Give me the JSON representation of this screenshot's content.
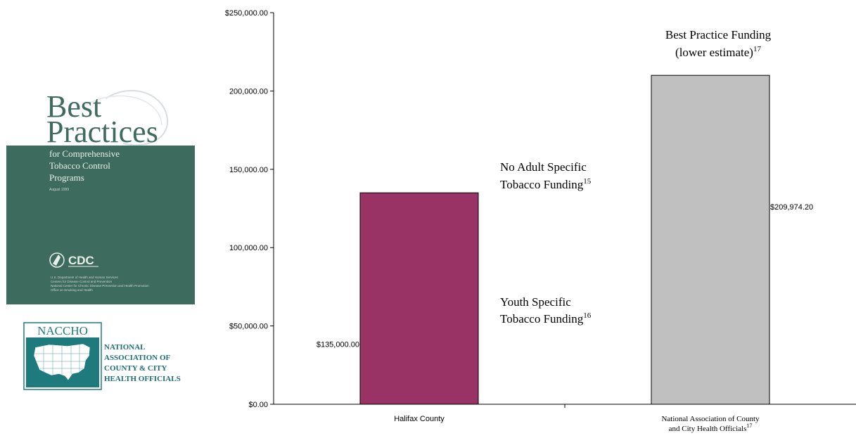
{
  "colors": {
    "halifax_bar": "#993366",
    "national_bar": "#c0c0c0",
    "cover_green": "#3d6b5d",
    "naccho_teal": "#1f7a7e"
  },
  "cover": {
    "title_line1": "Best",
    "title_line2": "Practices",
    "subtitle_lines": [
      "for Comprehensive",
      "Tobacco Control",
      "Programs"
    ],
    "date": "August 1999",
    "cdc_logo": "CDC",
    "agency_lines": [
      "U.S. Department of Health and Human Services",
      "Centers for Disease Control and Prevention",
      "National Center for Chronic Disease Prevention and Health Promotion",
      "Office on Smoking and Health"
    ],
    "hhs_icon": "hhs-eagle-icon"
  },
  "naccho": {
    "logo_text": "NACCHO",
    "map_icon": "us-map-icon",
    "name_lines": [
      "NATIONAL",
      "ASSOCIATION OF",
      "COUNTY & CITY",
      "HEALTH OFFICIALS"
    ]
  },
  "chart_data": {
    "type": "bar",
    "title": "",
    "xlabel": "",
    "ylabel": "",
    "ylim": [
      0,
      250000
    ],
    "y_ticks": [
      {
        "value": 0,
        "label": "$0.00"
      },
      {
        "value": 50000,
        "label": "$50,000.00"
      },
      {
        "value": 100000,
        "label": "100,000.00"
      },
      {
        "value": 150000,
        "label": "150,000.00"
      },
      {
        "value": 200000,
        "label": "200,000.00"
      },
      {
        "value": 250000,
        "label": "$250,000.00"
      }
    ],
    "categories": [
      "Halifax County",
      "National Association of County and City Health Officials"
    ],
    "category_label_lines": [
      {
        "main": [
          "Halifax County"
        ],
        "sup": ""
      },
      {
        "main": [
          "National Association of County",
          "and City Health Officials"
        ],
        "sup": "17"
      }
    ],
    "values": [
      135000,
      209974.2
    ],
    "value_labels": [
      "$135,000.00",
      "$209,974.20"
    ],
    "grid": false,
    "annotations": {
      "no_adult": {
        "lines": [
          "No Adult Specific",
          "Tobacco Funding"
        ],
        "sup": "15"
      },
      "youth": {
        "lines": [
          "Youth Specific",
          "Tobacco Funding"
        ],
        "sup": "16"
      },
      "best_practice": {
        "lines": [
          "Best Practice Funding",
          "(lower estimate)"
        ],
        "sup": "17"
      }
    }
  }
}
